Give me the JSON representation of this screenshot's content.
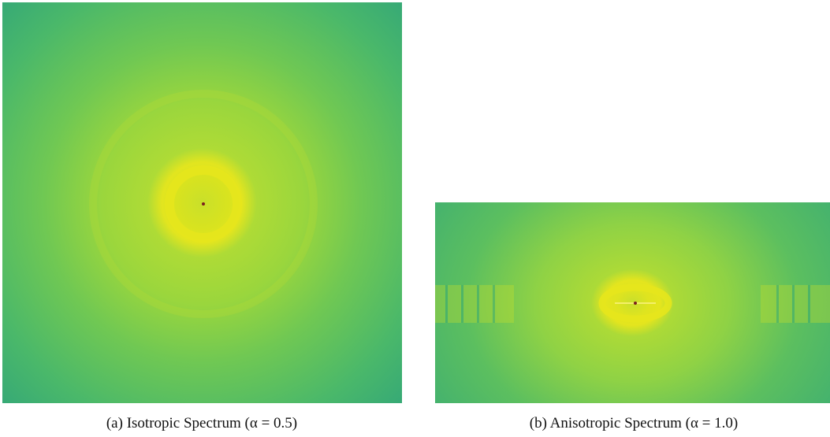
{
  "figure": {
    "panels": [
      {
        "caption": "(a) Isotropic Spectrum (α = 0.5)"
      },
      {
        "caption": "(b) Anisotropic Spectrum (α = 1.0)"
      }
    ]
  }
}
